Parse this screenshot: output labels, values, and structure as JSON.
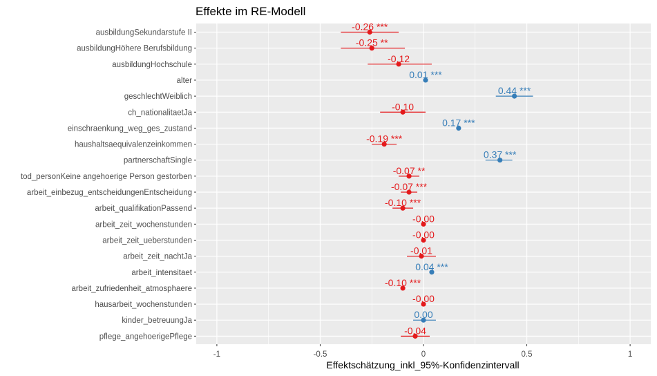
{
  "chart_data": {
    "type": "forest",
    "title": "Effekte im RE-Modell",
    "xlabel": "Effektschätzung_inkl_95%-Konfidenzintervall",
    "ylabel": "",
    "xlim": [
      -1.1,
      1.1
    ],
    "x_ticks": [
      "-1",
      "-0.5",
      "0",
      "0.5",
      "1"
    ],
    "x_tick_values": [
      -1,
      -0.5,
      0,
      0.5,
      1
    ],
    "grid": true,
    "colors": {
      "negative": "#e41a1c",
      "positive": "#377eb8",
      "panel": "#ebebeb",
      "grid": "#ffffff"
    },
    "terms": [
      {
        "name": "ausbildungSekundarstufe II",
        "estimate": -0.26,
        "ci": [
          -0.4,
          -0.12
        ],
        "label": "-0.26 ***",
        "sign": "negative"
      },
      {
        "name": "ausbildungHöhere Berufsbildung",
        "estimate": -0.25,
        "ci": [
          -0.4,
          -0.09
        ],
        "label": "-0.25 **",
        "sign": "negative"
      },
      {
        "name": "ausbildungHochschule",
        "estimate": -0.12,
        "ci": [
          -0.27,
          0.04
        ],
        "label": "-0.12",
        "sign": "negative"
      },
      {
        "name": "alter",
        "estimate": 0.01,
        "ci": [
          0.0,
          0.02
        ],
        "label": "0.01 ***",
        "sign": "positive"
      },
      {
        "name": "geschlechtWeiblich",
        "estimate": 0.44,
        "ci": [
          0.35,
          0.53
        ],
        "label": "0.44 ***",
        "sign": "positive"
      },
      {
        "name": "ch_nationalitaetJa",
        "estimate": -0.1,
        "ci": [
          -0.21,
          0.01
        ],
        "label": "-0.10",
        "sign": "negative"
      },
      {
        "name": "einschraenkung_weg_ges_zustand",
        "estimate": 0.17,
        "ci": [
          0.16,
          0.18
        ],
        "label": "0.17 ***",
        "sign": "positive"
      },
      {
        "name": "haushaltsaequivalenzeinkommen",
        "estimate": -0.19,
        "ci": [
          -0.25,
          -0.13
        ],
        "label": "-0.19 ***",
        "sign": "negative"
      },
      {
        "name": "partnerschaftSingle",
        "estimate": 0.37,
        "ci": [
          0.3,
          0.43
        ],
        "label": "0.37 ***",
        "sign": "positive"
      },
      {
        "name": "tod_personKeine angehoerige Person gestorben",
        "estimate": -0.07,
        "ci": [
          -0.12,
          -0.02
        ],
        "label": "-0.07 **",
        "sign": "negative"
      },
      {
        "name": "arbeit_einbezug_entscheidungenEntscheidung",
        "estimate": -0.07,
        "ci": [
          -0.11,
          -0.03
        ],
        "label": "-0.07 ***",
        "sign": "negative"
      },
      {
        "name": "arbeit_qualifikationPassend",
        "estimate": -0.1,
        "ci": [
          -0.15,
          -0.05
        ],
        "label": "-0.10 ***",
        "sign": "negative"
      },
      {
        "name": "arbeit_zeit_wochenstunden",
        "estimate": -0.0,
        "ci": [
          -0.01,
          0.0
        ],
        "label": "-0.00",
        "sign": "negative"
      },
      {
        "name": "arbeit_zeit_ueberstunden",
        "estimate": -0.0,
        "ci": [
          -0.01,
          0.0
        ],
        "label": "-0.00",
        "sign": "negative"
      },
      {
        "name": "arbeit_zeit_nachtJa",
        "estimate": -0.01,
        "ci": [
          -0.08,
          0.06
        ],
        "label": "-0.01",
        "sign": "negative"
      },
      {
        "name": "arbeit_intensitaet",
        "estimate": 0.04,
        "ci": [
          0.03,
          0.05
        ],
        "label": "0.04 ***",
        "sign": "positive"
      },
      {
        "name": "arbeit_zufriedenheit_atmosphaere",
        "estimate": -0.1,
        "ci": [
          -0.11,
          -0.09
        ],
        "label": "-0.10 ***",
        "sign": "negative"
      },
      {
        "name": "hausarbeit_wochenstunden",
        "estimate": -0.0,
        "ci": [
          -0.01,
          0.0
        ],
        "label": "-0.00",
        "sign": "negative"
      },
      {
        "name": "kinder_betreuungJa",
        "estimate": 0.0,
        "ci": [
          -0.05,
          0.06
        ],
        "label": "0.00",
        "sign": "positive"
      },
      {
        "name": "pflege_angehoerigePflege",
        "estimate": -0.04,
        "ci": [
          -0.11,
          0.03
        ],
        "label": "-0.04",
        "sign": "negative"
      }
    ]
  }
}
